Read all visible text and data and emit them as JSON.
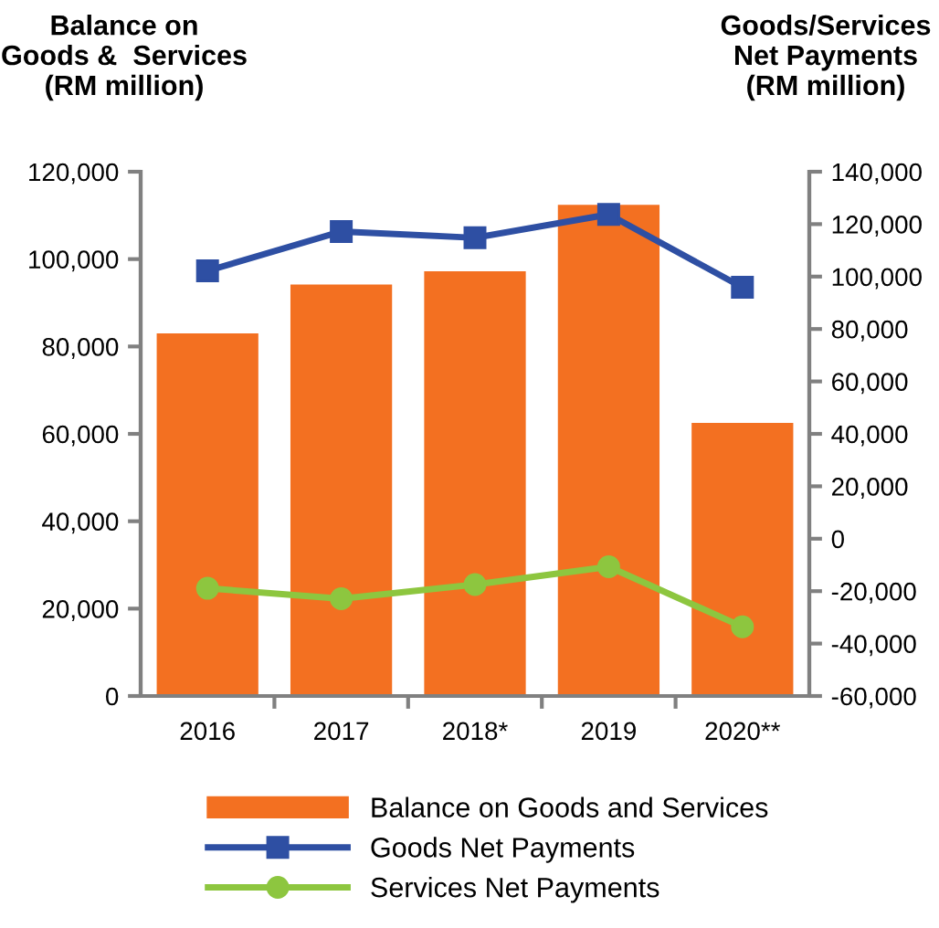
{
  "chart_data": {
    "type": "bar",
    "categories": [
      "2016",
      "2017",
      "2018*",
      "2019",
      "2020**"
    ],
    "ylabel": "Balance on\nGoods &  Services\n(RM million)",
    "y2label": "Goods/Services\nNet Payments\n(RM million)",
    "series": [
      {
        "name": "Balance on Goods and Services",
        "color": "#f37021",
        "values": [
          83000,
          94200,
          97200,
          112400,
          62500
        ]
      },
      {
        "name": "Goods Net Payments",
        "type": "line",
        "axis": "y2",
        "marker": "square",
        "color": "#2e4fa3",
        "values": [
          102200,
          117200,
          114800,
          123700,
          95900
        ]
      },
      {
        "name": "Services Net Payments",
        "type": "line",
        "axis": "y2",
        "marker": "circle",
        "color": "#8dc63f",
        "values": [
          -18900,
          -22900,
          -17500,
          -10700,
          -33600
        ]
      }
    ],
    "ylim": [
      0,
      120000
    ],
    "yticks": [
      {
        "value": 0,
        "label": "0"
      },
      {
        "value": 20000,
        "label": "20,000"
      },
      {
        "value": 40000,
        "label": "40,000"
      },
      {
        "value": 60000,
        "label": "60,000"
      },
      {
        "value": 80000,
        "label": "80,000"
      },
      {
        "value": 100000,
        "label": "100,000"
      },
      {
        "value": 120000,
        "label": "120,000"
      }
    ],
    "y2lim": [
      -60000,
      140000
    ],
    "y2ticks": [
      {
        "value": -60000,
        "label": "-60,000"
      },
      {
        "value": -40000,
        "label": "-40,000"
      },
      {
        "value": -20000,
        "label": "-20,000"
      },
      {
        "value": 0,
        "label": "0"
      },
      {
        "value": 20000,
        "label": "20,000"
      },
      {
        "value": 40000,
        "label": "40,000"
      },
      {
        "value": 60000,
        "label": "60,000"
      },
      {
        "value": 80000,
        "label": "80,000"
      },
      {
        "value": 100000,
        "label": "100,000"
      },
      {
        "value": 120000,
        "label": "120,000"
      },
      {
        "value": 140000,
        "label": "140,000"
      }
    ],
    "grid": false,
    "legend": "bottom"
  }
}
